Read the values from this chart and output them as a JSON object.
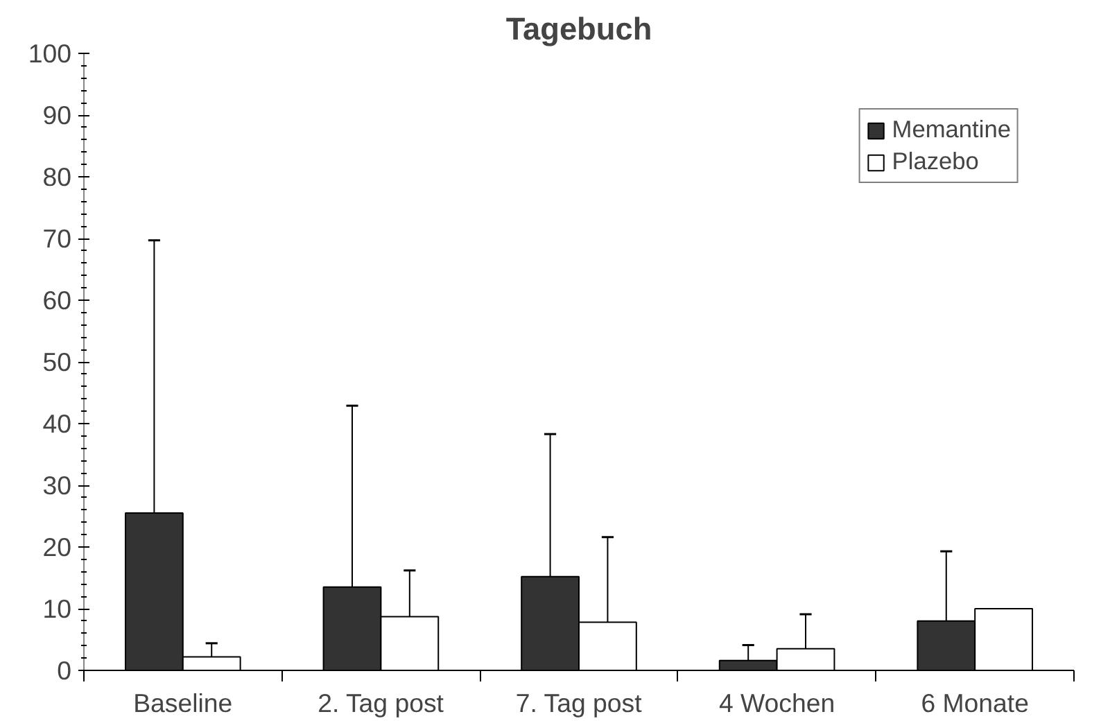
{
  "chart_data": {
    "type": "bar",
    "title": "Tagebuch",
    "categories": [
      "Baseline",
      "2. Tag post",
      "7. Tag post",
      "4 Wochen",
      "6 Monate"
    ],
    "series": [
      {
        "name": "Memantine",
        "color": "#333333",
        "values": [
          25.5,
          13.5,
          15.2,
          1.6,
          8.0
        ],
        "errors": [
          [
            25.5,
            69.7
          ],
          [
            13.5,
            42.9
          ],
          [
            15.2,
            38.3
          ],
          [
            1.6,
            4.1
          ],
          [
            8.0,
            19.3
          ]
        ]
      },
      {
        "name": "Plazebo",
        "color": "#ffffff",
        "values": [
          2.2,
          8.7,
          7.8,
          3.5,
          10.0
        ],
        "errors": [
          [
            2.2,
            4.4
          ],
          [
            8.7,
            16.2
          ],
          [
            7.8,
            21.6
          ],
          [
            3.5,
            9.1
          ],
          null
        ]
      }
    ],
    "ylim": [
      0,
      100
    ],
    "yticks": [
      0,
      10,
      20,
      30,
      40,
      50,
      60,
      70,
      80,
      90,
      100
    ],
    "grid": false,
    "legend": "top right"
  }
}
